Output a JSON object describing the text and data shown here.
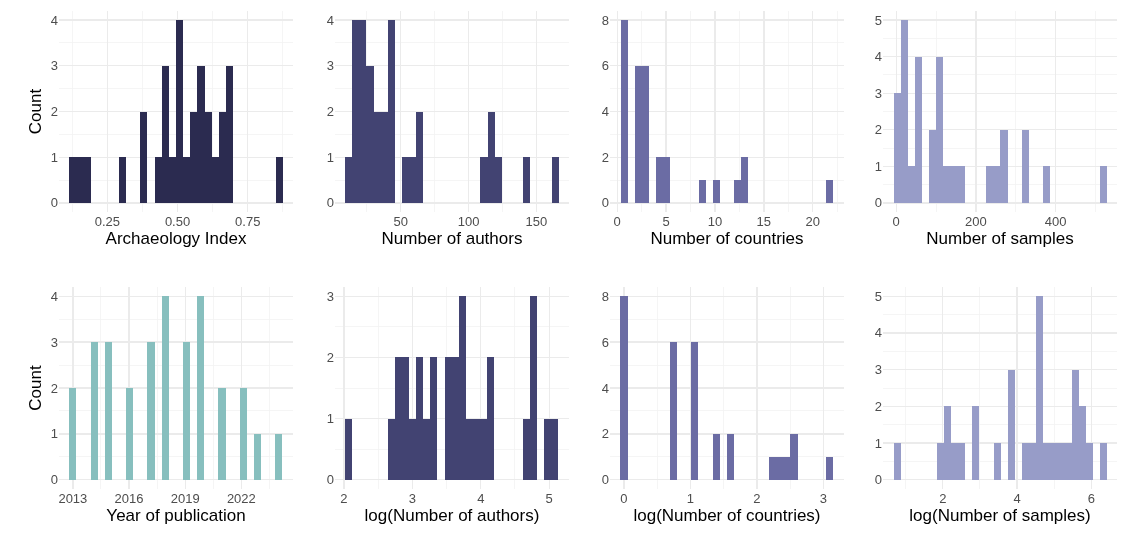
{
  "chart_data": [
    {
      "type": "histogram",
      "xlabel": "Archaeology Index",
      "ylabel": "Count",
      "color": "#2b2b50",
      "grid": true,
      "bins": [
        0.115,
        0.14,
        0.166,
        0.191,
        0.216,
        0.242,
        0.267,
        0.292,
        0.317,
        0.343,
        0.368,
        0.393,
        0.419,
        0.444,
        0.469,
        0.495,
        0.52,
        0.545,
        0.57,
        0.596,
        0.621,
        0.646,
        0.672,
        0.697,
        0.722,
        0.748,
        0.773,
        0.798,
        0.823,
        0.849,
        0.874
      ],
      "values": [
        1,
        1,
        1,
        0,
        0,
        0,
        0,
        1,
        0,
        0,
        2,
        0,
        1,
        3,
        1,
        4,
        1,
        2,
        3,
        2,
        1,
        2,
        3,
        0,
        0,
        0,
        0,
        0,
        0,
        1
      ],
      "xlim": [
        0.078,
        0.911
      ],
      "xticks": [
        {
          "value": 0.25,
          "label": "0.25"
        },
        {
          "value": 0.5,
          "label": "0.50"
        },
        {
          "value": 0.75,
          "label": "0.75"
        }
      ],
      "ylim": [
        -0.2,
        4.2
      ],
      "yticks": [
        0,
        1,
        2,
        3,
        4
      ]
    },
    {
      "type": "histogram",
      "xlabel": "Number of authors",
      "color": "#424372",
      "grid": true,
      "bins": [
        9,
        14.25,
        19.5,
        24.75,
        30,
        35.25,
        40.5,
        45.75,
        51,
        56.25,
        61.5,
        66.75,
        72,
        77.25,
        82.5,
        87.75,
        93,
        98.25,
        103.5,
        108.75,
        114,
        119.25,
        124.5,
        129.75,
        135,
        140.25,
        145.5,
        150.75,
        156,
        161.25,
        166.5
      ],
      "values": [
        1,
        4,
        4,
        3,
        2,
        2,
        4,
        0,
        1,
        1,
        2,
        0,
        0,
        0,
        0,
        0,
        0,
        0,
        0,
        1,
        2,
        1,
        0,
        0,
        0,
        1,
        0,
        0,
        0,
        1
      ],
      "xlim": [
        1.6,
        174
      ],
      "xticks": [
        50,
        100,
        150
      ],
      "ylim": [
        -0.2,
        4.2
      ],
      "yticks": [
        0,
        1,
        2,
        3,
        4
      ]
    },
    {
      "type": "histogram",
      "xlabel": "Number of countries",
      "color": "#6b6ca4",
      "grid": true,
      "bins": [
        0.37,
        1.095,
        1.82,
        2.545,
        3.27,
        3.995,
        4.72,
        5.445,
        6.17,
        6.895,
        7.62,
        8.345,
        9.07,
        9.795,
        10.52,
        11.245,
        11.97,
        12.695,
        13.42,
        14.145,
        14.87,
        15.595,
        16.32,
        17.045,
        17.77,
        18.495,
        19.22,
        19.945,
        20.67,
        21.395,
        22.12
      ],
      "values": [
        8,
        0,
        6,
        6,
        0,
        2,
        2,
        0,
        0,
        0,
        0,
        1,
        0,
        1,
        0,
        0,
        1,
        2,
        0,
        0,
        0,
        0,
        0,
        0,
        0,
        0,
        0,
        0,
        0,
        1
      ],
      "xlim": [
        -0.74,
        23.2
      ],
      "xticks": [
        0,
        5,
        10,
        15,
        20
      ],
      "ylim": [
        -0.4,
        8.4
      ],
      "yticks": [
        0,
        2,
        4,
        6,
        8
      ]
    },
    {
      "type": "histogram",
      "xlabel": "Number of samples",
      "color": "#979cc8",
      "grid": true,
      "bins": [
        -6.4,
        11.46,
        29.32,
        47.18,
        65.04,
        82.9,
        100.76,
        118.62,
        136.48,
        154.34,
        172.2,
        190.06,
        207.92,
        225.78,
        243.64,
        261.5,
        279.36,
        297.22,
        315.08,
        332.94,
        350.8,
        368.66,
        386.52,
        404.38,
        422.24,
        440.1,
        457.96,
        475.82,
        493.68,
        511.54,
        529.4
      ],
      "values": [
        3,
        5,
        1,
        4,
        0,
        2,
        4,
        1,
        1,
        1,
        0,
        0,
        0,
        1,
        1,
        2,
        0,
        0,
        2,
        0,
        0,
        1,
        0,
        0,
        0,
        0,
        0,
        0,
        0,
        1
      ],
      "xlim": [
        -33,
        554
      ],
      "xticks": [
        0,
        200,
        400
      ],
      "ylim": [
        -0.25,
        5.25
      ],
      "yticks": [
        0,
        1,
        2,
        3,
        4,
        5
      ]
    },
    {
      "type": "histogram",
      "xlabel": "Year of publication",
      "ylabel": "Count",
      "color": "#87bfbe",
      "grid": true,
      "bins": [
        2012.81,
        2013.189,
        2013.569,
        2013.948,
        2014.327,
        2014.707,
        2015.086,
        2015.465,
        2015.844,
        2016.224,
        2016.603,
        2016.982,
        2017.362,
        2017.741,
        2018.12,
        2018.5,
        2018.879,
        2019.258,
        2019.637,
        2020.017,
        2020.396,
        2020.775,
        2021.155,
        2021.534,
        2021.913,
        2022.293,
        2022.672,
        2023.051,
        2023.43,
        2023.81,
        2024.189
      ],
      "values": [
        2,
        0,
        0,
        3,
        0,
        3,
        0,
        0,
        2,
        0,
        0,
        3,
        0,
        4,
        0,
        0,
        3,
        0,
        4,
        0,
        0,
        2,
        0,
        0,
        2,
        0,
        1,
        0,
        0,
        1
      ],
      "xlim": [
        2012.26,
        2024.76
      ],
      "xticks": [
        2013,
        2016,
        2019,
        2022
      ],
      "ylim": [
        -0.2,
        4.2
      ],
      "yticks": [
        0,
        1,
        2,
        3,
        4
      ]
    },
    {
      "type": "histogram",
      "xlabel": "log(Number of authors)",
      "color": "#424372",
      "grid": true,
      "bins": [
        2.02,
        2.124,
        2.227,
        2.331,
        2.435,
        2.539,
        2.642,
        2.746,
        2.85,
        2.953,
        3.057,
        3.161,
        3.264,
        3.368,
        3.472,
        3.576,
        3.679,
        3.783,
        3.887,
        3.991,
        4.094,
        4.198,
        4.301,
        4.405,
        4.509,
        4.613,
        4.716,
        4.82,
        4.924,
        5.027,
        5.131
      ],
      "values": [
        1,
        0,
        0,
        0,
        0,
        0,
        1,
        2,
        2,
        1,
        2,
        1,
        2,
        0,
        2,
        2,
        3,
        1,
        1,
        1,
        2,
        0,
        0,
        0,
        0,
        1,
        3,
        0,
        1,
        1
      ],
      "xlim": [
        1.87,
        5.29
      ],
      "xticks": [
        2,
        3,
        4,
        5
      ],
      "ylim": [
        -0.15,
        3.15
      ],
      "yticks": [
        0,
        1,
        2,
        3
      ]
    },
    {
      "type": "histogram",
      "xlabel": "log(Number of countries)",
      "color": "#6b6ca4",
      "grid": true,
      "bins": [
        -0.053,
        0.054,
        0.16,
        0.267,
        0.373,
        0.48,
        0.587,
        0.693,
        0.8,
        0.906,
        1.013,
        1.12,
        1.226,
        1.333,
        1.439,
        1.546,
        1.653,
        1.759,
        1.866,
        1.972,
        2.079,
        2.186,
        2.292,
        2.399,
        2.505,
        2.612,
        2.719,
        2.825,
        2.932,
        3.038,
        3.145
      ],
      "values": [
        8,
        0,
        0,
        0,
        0,
        0,
        0,
        6,
        0,
        0,
        6,
        0,
        0,
        2,
        0,
        2,
        0,
        0,
        0,
        0,
        0,
        1,
        1,
        1,
        2,
        0,
        0,
        0,
        0,
        1
      ],
      "xlim": [
        -0.21,
        3.31
      ],
      "xticks": [
        0,
        1,
        2,
        3
      ],
      "ylim": [
        -0.4,
        8.4
      ],
      "yticks": [
        0,
        2,
        4,
        6,
        8
      ]
    },
    {
      "type": "histogram",
      "xlabel": "log(Number of samples)",
      "color": "#979cc8",
      "grid": true,
      "bins": [
        0.69,
        0.881,
        1.073,
        1.264,
        1.455,
        1.647,
        1.838,
        2.029,
        2.22,
        2.412,
        2.603,
        2.794,
        2.986,
        3.177,
        3.368,
        3.56,
        3.751,
        3.942,
        4.133,
        4.325,
        4.516,
        4.707,
        4.899,
        5.09,
        5.281,
        5.473,
        5.664,
        5.855,
        6.046,
        6.238,
        6.429
      ],
      "values": [
        1,
        0,
        0,
        0,
        0,
        0,
        1,
        2,
        1,
        1,
        0,
        2,
        0,
        0,
        1,
        0,
        3,
        0,
        1,
        1,
        5,
        1,
        1,
        1,
        1,
        3,
        2,
        1,
        0,
        1
      ],
      "xlim": [
        0.39,
        6.69
      ],
      "xticks": [
        2,
        4,
        6
      ],
      "ylim": [
        -0.25,
        5.25
      ],
      "yticks": [
        0,
        1,
        2,
        3,
        4,
        5
      ]
    }
  ]
}
